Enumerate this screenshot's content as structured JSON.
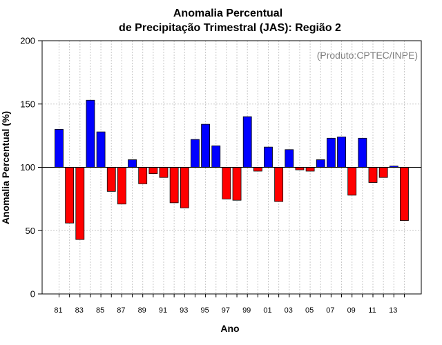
{
  "chart_data": {
    "type": "bar",
    "title_lines": [
      "Anomalia Percentual",
      "de Precipitação Trimestral (JAS): Região 2"
    ],
    "xlabel": "Ano",
    "ylabel": "Anomalia Percentual (%)",
    "source_label": "(Produto:CPTEC/INPE)",
    "ylim": [
      0,
      200
    ],
    "yticks": [
      0,
      50,
      100,
      150,
      200
    ],
    "baseline": 100,
    "grid": true,
    "categories": [
      "81",
      "82",
      "83",
      "84",
      "85",
      "86",
      "87",
      "88",
      "89",
      "90",
      "91",
      "92",
      "93",
      "94",
      "95",
      "96",
      "97",
      "98",
      "99",
      "00",
      "01",
      "02",
      "03",
      "04",
      "05",
      "06",
      "07",
      "08",
      "09",
      "10",
      "11",
      "12",
      "13",
      "14"
    ],
    "xtick_labels": [
      "81",
      "83",
      "85",
      "87",
      "89",
      "91",
      "93",
      "95",
      "97",
      "99",
      "01",
      "03",
      "05",
      "07",
      "09",
      "11",
      "13"
    ],
    "values": [
      130,
      56,
      43,
      153,
      128,
      81,
      71,
      106,
      87,
      95,
      92,
      72,
      68,
      122,
      134,
      117,
      75,
      74,
      140,
      97,
      116,
      73,
      114,
      98,
      97,
      106,
      123,
      124,
      78,
      123,
      88,
      92,
      101,
      58
    ],
    "colors": {
      "above": "#0000ff",
      "below": "#ff0000",
      "outline": "#000000"
    }
  }
}
